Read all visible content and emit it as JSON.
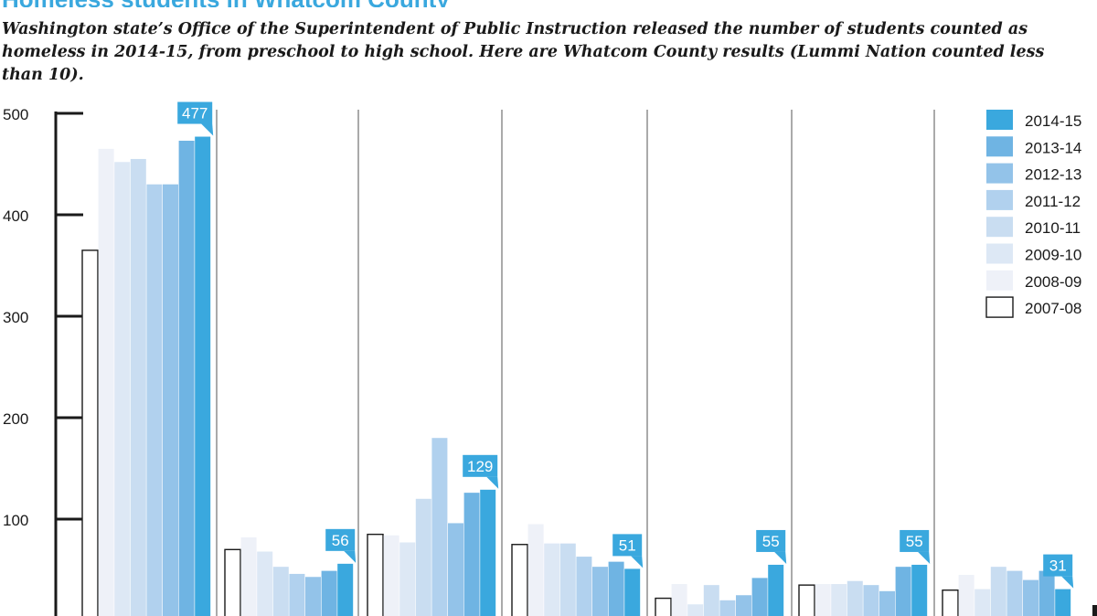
{
  "headline": "Homeless students in Whatcom County",
  "subtitle": "Washington state’s Office of the Superintendent of Public Instruction released the number of students counted as homeless in 2014-15, from preschool to high school. Here are Whatcom County results (Lummi Nation counted less than 10).",
  "chart_data": {
    "type": "bar",
    "ylim": [
      0,
      500
    ],
    "yticks": [
      100,
      200,
      300,
      400,
      500
    ],
    "grid": false,
    "legend_position": "top-right",
    "colors": [
      "#ffffff",
      "#eef1f8",
      "#dde8f5",
      "#c9ddf1",
      "#b1d1ee",
      "#93c3e9",
      "#6fb4e3",
      "#3aa8de"
    ],
    "series": [
      {
        "name": "2007-08",
        "values": [
          365,
          70,
          85,
          75,
          22,
          35,
          30
        ]
      },
      {
        "name": "2008-09",
        "values": [
          465,
          82,
          84,
          95,
          36,
          36,
          45
        ]
      },
      {
        "name": "2009-10",
        "values": [
          452,
          68,
          77,
          76,
          16,
          36,
          31
        ]
      },
      {
        "name": "2010-11",
        "values": [
          455,
          53,
          120,
          76,
          35,
          39,
          53
        ]
      },
      {
        "name": "2011-12",
        "values": [
          430,
          46,
          180,
          63,
          20,
          35,
          49
        ]
      },
      {
        "name": "2012-13",
        "values": [
          430,
          43,
          96,
          53,
          25,
          29,
          40
        ]
      },
      {
        "name": "2013-14",
        "values": [
          473,
          49,
          126,
          58,
          42,
          53,
          49
        ]
      },
      {
        "name": "2014-15",
        "values": [
          477,
          56,
          129,
          51,
          55,
          55,
          31
        ]
      }
    ],
    "callouts": [
      "477",
      "56",
      "129",
      "51",
      "55",
      "55",
      "31"
    ]
  }
}
